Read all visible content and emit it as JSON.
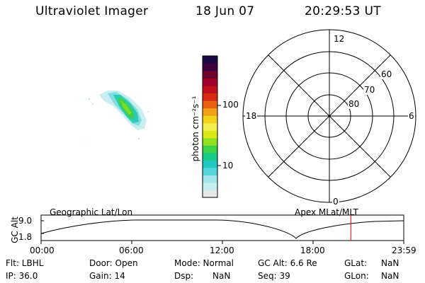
{
  "header": {
    "title": "Ultraviolet Imager",
    "date": "18 Jun 07",
    "time": "20:29:53 UT"
  },
  "colorbar": {
    "unit": "photon cm⁻²s⁻¹",
    "ticks": [
      "100",
      "10"
    ],
    "colors": [
      "#e8e8e8",
      "#c8eef0",
      "#9fe5ea",
      "#55d4d8",
      "#1fc8c0",
      "#18c98a",
      "#3cd24a",
      "#8fe020",
      "#d9ea18",
      "#f5f050",
      "#f2d21a",
      "#f2a018",
      "#e86010",
      "#d82a10",
      "#c0101e",
      "#a0002a",
      "#700030",
      "#400040",
      "#1a0a40"
    ]
  },
  "polar": {
    "labels": {
      "top": "12",
      "bottom": "0",
      "left": "18",
      "right": "6",
      "lat60": "60",
      "lat70": "70",
      "lat80": "80"
    }
  },
  "altitude_panel": {
    "ylabel": "GC Alt",
    "yticks": [
      "9.0",
      "1.8"
    ],
    "left_label": "Geographic Lat/Lon",
    "right_label": "Apex MLat/MLT",
    "xticks": [
      "00:00",
      "06:00",
      "12:00",
      "18:00",
      "23:59"
    ],
    "marker_color": "#dd0000",
    "marker_time_fraction": 0.8541
  },
  "info": {
    "row1": {
      "flt": "Flt: LBHL",
      "door": "Door: Open",
      "mode": "Mode: Normal",
      "gcalt": "GC Alt: 6.6 Re",
      "glat_label": "GLat:",
      "glat_val": "NaN"
    },
    "row2": {
      "ip": "IP: 36.0",
      "gain": "Gain: 14",
      "dsp_label": "Dsp:",
      "dsp_val": "NaN",
      "seq": "Seq: 39",
      "glon_label": "GLon:",
      "glon_val": "NaN"
    }
  }
}
